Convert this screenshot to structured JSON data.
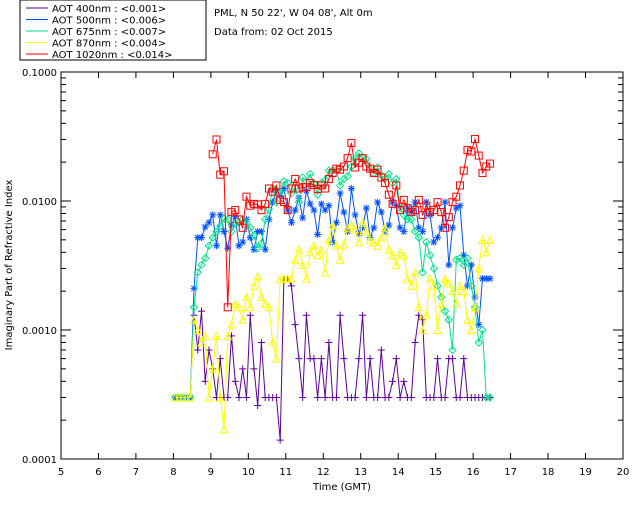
{
  "chart_data": {
    "type": "line",
    "scale_y": "log",
    "xlabel": "Time (GMT)",
    "ylabel": "Imaginary Part of Refractive Index",
    "xlim": [
      5,
      20
    ],
    "ylim": [
      0.0001,
      0.1
    ],
    "x_ticks": [
      "5",
      "6",
      "7",
      "8",
      "9",
      "10",
      "11",
      "12",
      "13",
      "14",
      "15",
      "16",
      "17",
      "18",
      "19",
      "20"
    ],
    "y_ticks": [
      {
        "value": 0.0001,
        "label": "0.0001"
      },
      {
        "value": 0.001,
        "label": "0.0010"
      },
      {
        "value": 0.01,
        "label": "0.0100"
      },
      {
        "value": 0.1,
        "label": "0.1000"
      }
    ],
    "info": {
      "site": "PML, N 50 22', W 04 08', Alt 0m",
      "date": "Data from: 02 Oct 2015"
    },
    "x": [
      8.05,
      8.15,
      8.25,
      8.35,
      8.45,
      8.55,
      8.65,
      8.75,
      8.85,
      8.95,
      9.05,
      9.15,
      9.25,
      9.35,
      9.45,
      9.55,
      9.65,
      9.75,
      9.85,
      9.95,
      10.05,
      10.15,
      10.25,
      10.35,
      10.45,
      10.55,
      10.65,
      10.75,
      10.85,
      10.95,
      11.05,
      11.15,
      11.25,
      11.35,
      11.45,
      11.55,
      11.65,
      11.75,
      11.85,
      11.95,
      12.05,
      12.15,
      12.25,
      12.35,
      12.45,
      12.55,
      12.65,
      12.75,
      12.85,
      12.95,
      13.05,
      13.15,
      13.25,
      13.35,
      13.45,
      13.55,
      13.65,
      13.75,
      13.85,
      13.95,
      14.05,
      14.15,
      14.25,
      14.35,
      14.45,
      14.55,
      14.65,
      14.75,
      14.85,
      14.95,
      15.05,
      15.15,
      15.25,
      15.35,
      15.45,
      15.55,
      15.65,
      15.75,
      15.85,
      15.95,
      16.05,
      16.15,
      16.25,
      16.35,
      16.45
    ],
    "series": [
      {
        "name": "AOT  400nm : <0.001>",
        "color": "#5a0098",
        "marker": "plus",
        "values": [
          0.0003,
          0.0003,
          0.0003,
          0.0003,
          0.0003,
          0.0013,
          0.0007,
          0.0014,
          0.0004,
          0.0007,
          0.0005,
          0.0003,
          0.0006,
          0.0003,
          0.0003,
          0.0009,
          0.0004,
          0.0003,
          0.0005,
          0.0003,
          0.0013,
          0.0005,
          0.00026,
          0.0008,
          0.0003,
          0.0003,
          0.0003,
          0.0003,
          0.00014,
          0.0025,
          0.0025,
          0.0022,
          0.0011,
          0.0006,
          0.0003,
          0.0013,
          0.0006,
          0.0006,
          0.0003,
          0.0006,
          0.0003,
          0.0008,
          0.0003,
          0.0003,
          0.0013,
          0.0006,
          0.0003,
          0.0003,
          0.0003,
          0.0006,
          0.0013,
          0.0003,
          0.0006,
          0.0003,
          0.0003,
          0.0007,
          0.0003,
          0.0003,
          0.0004,
          0.0006,
          0.0003,
          0.0004,
          0.0003,
          0.0003,
          0.0008,
          0.0013,
          0.0012,
          0.0003,
          0.0003,
          0.0003,
          0.0006,
          0.0003,
          0.0003,
          0.0006,
          0.0006,
          0.0003,
          0.0003,
          0.0006,
          0.0003,
          0.0003,
          0.0003,
          0.0003,
          0.0003,
          0.0003,
          0.0003
        ]
      },
      {
        "name": "AOT  500nm : <0.006>",
        "color": "#0050ff",
        "marker": "asterisk",
        "values": [
          0.0003,
          0.0003,
          0.0003,
          0.0003,
          0.0003,
          0.0021,
          0.0052,
          0.0052,
          0.0063,
          0.0068,
          0.0078,
          0.0045,
          0.0078,
          0.0058,
          0.0043,
          0.0065,
          0.0076,
          0.0045,
          0.0048,
          0.0072,
          0.0052,
          0.0042,
          0.0058,
          0.0058,
          0.0042,
          0.0072,
          0.0098,
          0.012,
          0.011,
          0.0125,
          0.0085,
          0.0068,
          0.0085,
          0.0105,
          0.0074,
          0.012,
          0.0095,
          0.0085,
          0.0055,
          0.0095,
          0.0085,
          0.0092,
          0.0048,
          0.0068,
          0.0115,
          0.0082,
          0.0058,
          0.0125,
          0.0078,
          0.0056,
          0.0062,
          0.0088,
          0.0052,
          0.0062,
          0.0098,
          0.0082,
          0.0058,
          0.0065,
          0.0098,
          0.0092,
          0.0062,
          0.0058,
          0.0088,
          0.0082,
          0.0098,
          0.0062,
          0.0058,
          0.0098,
          0.0078,
          0.0048,
          0.0052,
          0.0062,
          0.0098,
          0.0032,
          0.0062,
          0.0088,
          0.0092,
          0.0038,
          0.0022,
          0.0032,
          0.0018,
          0.0011,
          0.0025,
          0.0025,
          0.0025
        ]
      },
      {
        "name": "AOT  675nm : <0.007>",
        "color": "#00e08a",
        "marker": "diamond",
        "values": [
          0.0003,
          0.0003,
          0.0003,
          0.0003,
          0.0003,
          0.0015,
          0.0028,
          0.0032,
          0.0036,
          0.0045,
          0.0052,
          0.0058,
          0.0064,
          0.0073,
          0.0072,
          0.0058,
          0.0066,
          0.0068,
          0.0072,
          0.0068,
          0.0062,
          0.0054,
          0.0043,
          0.0047,
          0.0072,
          0.0086,
          0.0125,
          0.0098,
          0.0118,
          0.0142,
          0.0138,
          0.0115,
          0.0128,
          0.0098,
          0.0152,
          0.0142,
          0.0162,
          0.0136,
          0.0112,
          0.0138,
          0.0145,
          0.0172,
          0.0172,
          0.0174,
          0.0132,
          0.0148,
          0.0156,
          0.0185,
          0.0212,
          0.0234,
          0.0215,
          0.0212,
          0.0178,
          0.0164,
          0.0182,
          0.0158,
          0.0148,
          0.0162,
          0.0138,
          0.0148,
          0.0088,
          0.0078,
          0.0072,
          0.0072,
          0.0058,
          0.0052,
          0.0028,
          0.0048,
          0.0038,
          0.003,
          0.0022,
          0.0018,
          0.0014,
          0.0012,
          0.0007,
          0.0035,
          0.0036,
          0.0032,
          0.0036,
          0.0022,
          0.0015,
          0.0008,
          0.001,
          0.0003,
          0.0003
        ]
      },
      {
        "name": "AOT  870nm : <0.004>",
        "color": "#ffff00",
        "marker": "triangle",
        "values": [
          0.0003,
          0.0003,
          0.0003,
          0.0003,
          0.0003,
          0.0012,
          0.001,
          0.0008,
          0.0009,
          0.0003,
          0.0005,
          0.0009,
          0.0003,
          0.00017,
          0.0009,
          0.0011,
          0.0016,
          0.0015,
          0.0012,
          0.0018,
          0.0015,
          0.0022,
          0.0026,
          0.0018,
          0.0016,
          0.0015,
          0.0008,
          0.0006,
          0.0025,
          0.0025,
          0.0025,
          0.0025,
          0.0035,
          0.0042,
          0.0032,
          0.0025,
          0.004,
          0.0045,
          0.0038,
          0.0042,
          0.0028,
          0.005,
          0.0065,
          0.0045,
          0.0035,
          0.0046,
          0.0062,
          0.0065,
          0.006,
          0.0048,
          0.0068,
          0.0058,
          0.005,
          0.0048,
          0.0045,
          0.0052,
          0.0062,
          0.0042,
          0.0038,
          0.0032,
          0.004,
          0.0038,
          0.0025,
          0.0022,
          0.0028,
          0.0015,
          0.001,
          0.0013,
          0.0025,
          0.0022,
          0.001,
          0.0016,
          0.0025,
          0.0023,
          0.002,
          0.0016,
          0.0022,
          0.002,
          0.0012,
          0.001,
          0.0015,
          0.003,
          0.005,
          0.004,
          0.005
        ]
      },
      {
        "name": "AOT 1020nm : <0.014>",
        "color": "#ff0000",
        "marker": "square",
        "values": [
          null,
          null,
          null,
          null,
          null,
          null,
          null,
          null,
          null,
          null,
          0.023,
          0.03,
          0.016,
          0.017,
          0.0015,
          0.0082,
          0.0085,
          0.0072,
          0.0062,
          0.0108,
          0.0092,
          0.0095,
          0.0094,
          0.0085,
          0.0095,
          0.0125,
          0.0118,
          0.0132,
          0.0102,
          0.0098,
          0.0085,
          0.0125,
          0.0148,
          0.0125,
          0.0128,
          0.0128,
          0.0138,
          0.0133,
          0.0124,
          0.0132,
          0.0125,
          0.0148,
          0.0165,
          0.0178,
          0.0175,
          0.0185,
          0.0215,
          0.0282,
          0.0182,
          0.0198,
          0.0215,
          0.0185,
          0.0178,
          0.0165,
          0.0175,
          0.0152,
          0.0138,
          0.0112,
          0.0095,
          0.0132,
          0.0085,
          0.0102,
          0.0088,
          0.0082,
          0.0085,
          0.0102,
          0.0078,
          0.0092,
          0.0082,
          0.0085,
          0.0098,
          0.0082,
          0.0062,
          0.0075,
          0.0098,
          0.0108,
          0.0132,
          0.0172,
          0.0248,
          0.0242,
          0.0302,
          0.0225,
          0.0165,
          0.0185,
          0.0195
        ]
      }
    ]
  }
}
